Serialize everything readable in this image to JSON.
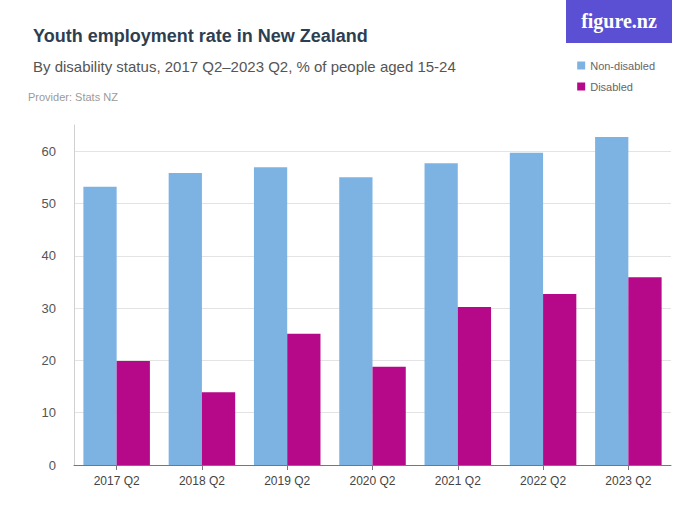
{
  "chart_data": {
    "type": "bar",
    "title": "Youth employment rate in New Zealand",
    "subtitle": "By disability status, 2017 Q2–2023 Q2, % of people aged 15-24",
    "annotations": [
      "Provider: Stats NZ",
      "figure.nz"
    ],
    "categories": [
      "2017 Q2",
      "2018 Q2",
      "2019 Q2",
      "2020 Q2",
      "2021 Q2",
      "2022 Q2",
      "2023 Q2"
    ],
    "series": [
      {
        "name": "Non-disabled",
        "color": "#7db3e3",
        "values": [
          53.2,
          55.8,
          56.9,
          55.0,
          57.7,
          59.7,
          62.7
        ]
      },
      {
        "name": "Disabled",
        "color": "#b5098a",
        "values": [
          19.9,
          13.9,
          25.1,
          18.8,
          30.2,
          32.7,
          35.9
        ]
      }
    ],
    "ylim": [
      0,
      65
    ],
    "yticks": [
      0,
      10,
      20,
      30,
      40,
      50,
      60
    ],
    "grid": true,
    "legend": "top-right"
  }
}
